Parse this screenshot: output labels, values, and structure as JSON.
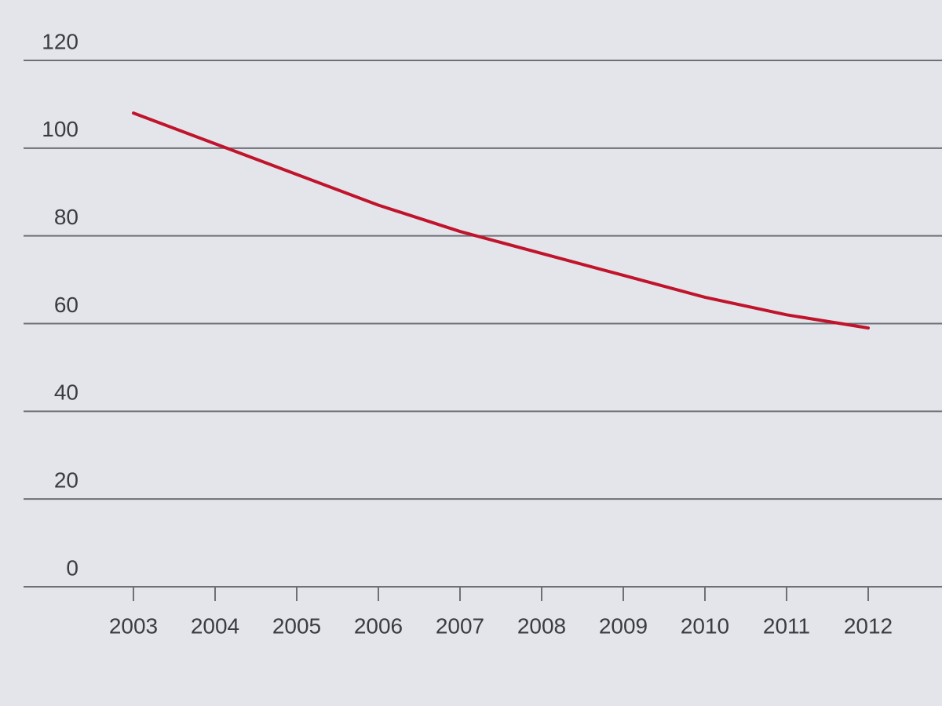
{
  "chart_data": {
    "type": "line",
    "categories": [
      "2003",
      "2004",
      "2005",
      "2006",
      "2007",
      "2008",
      "2009",
      "2010",
      "2011",
      "2012"
    ],
    "series": [
      {
        "color": "#c0142c",
        "values": [
          108,
          101,
          94,
          87,
          81,
          76,
          71,
          66,
          62,
          59
        ]
      }
    ],
    "ylim": [
      0,
      120
    ],
    "yticks": [
      0,
      20,
      40,
      60,
      80,
      100,
      120
    ],
    "grid": true
  }
}
